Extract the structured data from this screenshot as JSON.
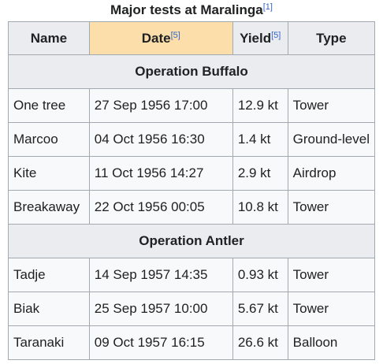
{
  "caption": {
    "title": "Major tests at Maralinga",
    "ref": "[1]"
  },
  "headers": {
    "name": "Name",
    "date": "Date",
    "date_ref": "[5]",
    "yield": "Yield",
    "yield_ref": "[5]",
    "type": "Type"
  },
  "sections": [
    {
      "title": "Operation Buffalo",
      "rows": [
        {
          "name": "One tree",
          "date": "27 Sep 1956 17:00",
          "yield": "12.9 kt",
          "type": "Tower"
        },
        {
          "name": "Marcoo",
          "date": "04 Oct 1956 16:30",
          "yield": "1.4 kt",
          "type": "Ground-level"
        },
        {
          "name": "Kite",
          "date": "11 Oct 1956 14:27",
          "yield": "2.9 kt",
          "type": "Airdrop"
        },
        {
          "name": "Breakaway",
          "date": "22 Oct 1956 00:05",
          "yield": "10.8 kt",
          "type": "Tower"
        }
      ]
    },
    {
      "title": "Operation Antler",
      "rows": [
        {
          "name": "Tadje",
          "date": "14 Sep 1957 14:35",
          "yield": "0.93 kt",
          "type": "Tower"
        },
        {
          "name": "Biak",
          "date": "25 Sep 1957 10:00",
          "yield": "5.67 kt",
          "type": "Tower"
        },
        {
          "name": "Taranaki",
          "date": "09 Oct 1957 16:15",
          "yield": "26.6 kt",
          "type": "Balloon"
        }
      ]
    }
  ],
  "colors": {
    "header_bg": "#eaecf0",
    "sorted_header_bg": "#fcdeab",
    "cell_bg": "#f8f9fa",
    "border": "#a2a9b1",
    "link": "#3366cc"
  }
}
